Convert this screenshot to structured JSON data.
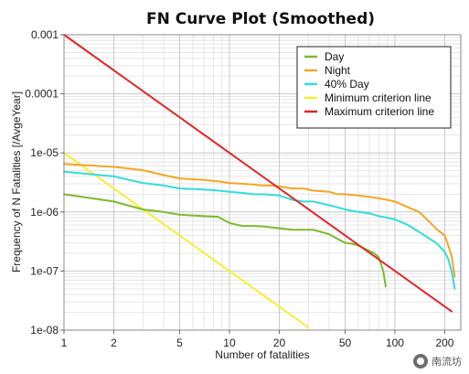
{
  "chart_data": {
    "type": "line",
    "title": "FN Curve Plot (Smoothed)",
    "xlabel": "Number of fatalities",
    "ylabel": "Frequency of N Fatalities [/AvgeYear]",
    "x_scale": "log",
    "y_scale": "log",
    "xlim": [
      1,
      250
    ],
    "ylim": [
      1e-08,
      0.001
    ],
    "grid": true,
    "legend_position": "top-right",
    "x_ticks": [
      1,
      2,
      5,
      10,
      20,
      50,
      100,
      200
    ],
    "x_tick_labels": [
      "1",
      "2",
      "5",
      "10",
      "20",
      "50",
      "100",
      "200"
    ],
    "y_ticks": [
      1e-08,
      1e-07,
      1e-06,
      1e-05,
      0.0001,
      0.001
    ],
    "y_tick_labels": [
      "1e-08",
      "1e-07",
      "1e-06",
      "1e-05",
      "0.0001",
      "0.001"
    ],
    "series": [
      {
        "name": "Day",
        "color": "#7cba2e",
        "x": [
          1,
          2,
          3,
          4,
          5,
          7,
          8.5,
          10,
          12,
          14,
          16,
          20,
          24,
          28,
          32,
          40,
          45,
          50,
          55,
          60,
          70,
          75,
          80,
          85,
          88
        ],
        "y": [
          2e-06,
          1.5e-06,
          1.1e-06,
          1e-06,
          9e-07,
          8.5e-07,
          8.3e-07,
          6.5e-07,
          5.8e-07,
          5.8e-07,
          5.7e-07,
          5.3e-07,
          5e-07,
          5e-07,
          5e-07,
          4.2e-07,
          3.5e-07,
          3e-07,
          2.9e-07,
          2.7e-07,
          2.2e-07,
          2e-07,
          1.7e-07,
          1e-07,
          5.5e-08
        ]
      },
      {
        "name": "Night",
        "color": "#f5a623",
        "x": [
          1,
          2,
          3,
          4,
          5,
          7,
          8.5,
          10,
          12,
          14,
          16,
          18,
          20,
          24,
          28,
          32,
          40,
          45,
          50,
          60,
          70,
          80,
          90,
          100,
          120,
          140,
          160,
          180,
          200,
          210,
          220,
          230
        ],
        "y": [
          6.5e-06,
          5.8e-06,
          5.1e-06,
          4.2e-06,
          3.7e-06,
          3.5e-06,
          3.3e-06,
          3.1e-06,
          3e-06,
          2.9e-06,
          2.8e-06,
          2.8e-06,
          2.7e-06,
          2.5e-06,
          2.5e-06,
          2.3e-06,
          2.2e-06,
          2e-06,
          2e-06,
          1.9e-06,
          1.8e-06,
          1.7e-06,
          1.6e-06,
          1.5e-06,
          1.2e-06,
          1e-06,
          7e-07,
          5e-07,
          4e-07,
          2.7e-07,
          1.8e-07,
          8e-08
        ]
      },
      {
        "name": "40% Day",
        "color": "#33dddd",
        "x": [
          1,
          2,
          3,
          4,
          5,
          7,
          8.5,
          10,
          12,
          14,
          16,
          20,
          24,
          28,
          32,
          40,
          45,
          50,
          60,
          70,
          80,
          90,
          100,
          120,
          140,
          160,
          180,
          200,
          210,
          220,
          230
        ],
        "y": [
          4.8e-06,
          4e-06,
          3.1e-06,
          2.8e-06,
          2.5e-06,
          2.4e-06,
          2.3e-06,
          2.2e-06,
          2.1e-06,
          2e-06,
          2e-06,
          1.9e-06,
          1.6e-06,
          1.5e-06,
          1.5e-06,
          1.3e-06,
          1.2e-06,
          1.1e-06,
          1e-06,
          9.5e-07,
          8.5e-07,
          8e-07,
          7.5e-07,
          6e-07,
          4.6e-07,
          3.6e-07,
          2.9e-07,
          2.1e-07,
          1.6e-07,
          1e-07,
          5e-08
        ]
      },
      {
        "name": "Minimum criterion line",
        "color": "#f5f032",
        "x": [
          1,
          30
        ],
        "y": [
          1e-05,
          1.11e-08
        ]
      },
      {
        "name": "Maximum criterion line",
        "color": "#e0262a",
        "x": [
          1,
          220
        ],
        "y": [
          0.001,
          2.07e-08
        ]
      }
    ]
  },
  "watermark": {
    "text": "南流坊"
  }
}
